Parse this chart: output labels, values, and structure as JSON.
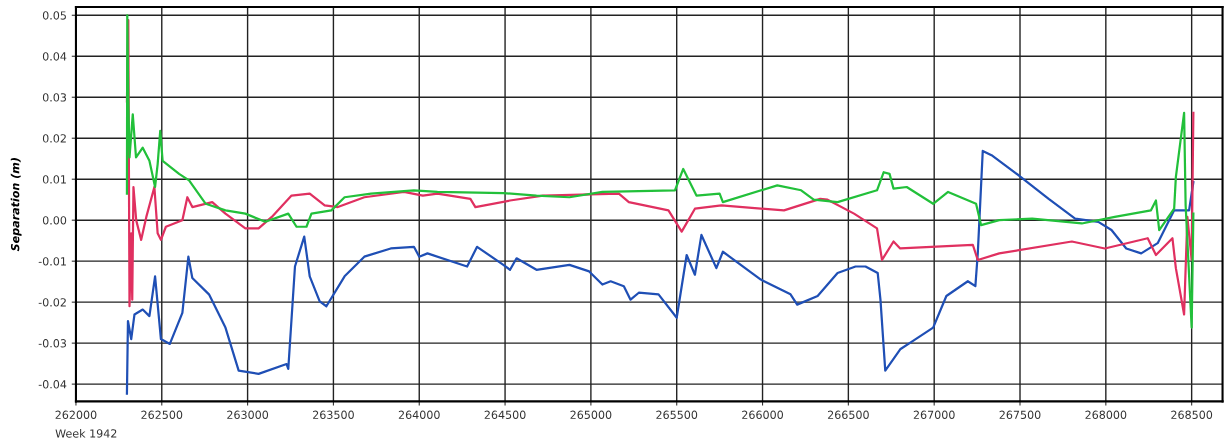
{
  "chart_data": {
    "type": "line",
    "ylabel": "Separation (m)",
    "annotations": [
      "Week 1942"
    ],
    "xlim": [
      262000,
      268680
    ],
    "ylim": [
      -0.0442,
      0.052
    ],
    "xticks": [
      262000,
      262500,
      263000,
      263500,
      264000,
      264500,
      265000,
      265500,
      266000,
      266500,
      267000,
      267500,
      268000,
      268500
    ],
    "yticks": [
      {
        "value": -0.04,
        "label": "-0.04"
      },
      {
        "value": -0.03,
        "label": "-0.03"
      },
      {
        "value": -0.02,
        "label": "-0.02"
      },
      {
        "value": -0.01,
        "label": "-0.01"
      },
      {
        "value": 0,
        "label": "0.00"
      },
      {
        "value": 0.01,
        "label": "0.01"
      },
      {
        "value": 0.02,
        "label": "0.02"
      },
      {
        "value": 0.03,
        "label": "0.03"
      },
      {
        "value": 0.04,
        "label": "0.04"
      },
      {
        "value": 0.05,
        "label": "0.05"
      }
    ],
    "grid": true,
    "legend": false,
    "marker": "none",
    "line_style": "solid",
    "series": [
      {
        "color": "#1f4fb5",
        "x": [
          262297,
          262303,
          262322,
          262341,
          262389,
          262428,
          262461,
          262495,
          262547,
          262620,
          262655,
          262678,
          262775,
          262871,
          262948,
          263064,
          263227,
          263237,
          263276,
          263330,
          263362,
          263420,
          263459,
          263565,
          263680,
          263834,
          263969,
          264000,
          264048,
          264279,
          264337,
          264490,
          264529,
          264567,
          264683,
          264875,
          264990,
          265067,
          265115,
          265192,
          265231,
          265279,
          265394,
          265500,
          265558,
          265606,
          265644,
          265731,
          265769,
          265990,
          266163,
          266202,
          266321,
          266437,
          266542,
          266600,
          266671,
          266687,
          266715,
          266802,
          266879,
          266994,
          267071,
          267196,
          267240,
          267254,
          267283,
          267340,
          267494,
          267667,
          267821,
          267956,
          268033,
          268119,
          268206,
          268302,
          268398,
          268485,
          268510
        ],
        "values": [
          -0.0423,
          -0.0246,
          -0.029,
          -0.023,
          -0.0218,
          -0.0234,
          -0.0137,
          -0.029,
          -0.0302,
          -0.0226,
          -0.0089,
          -0.0141,
          -0.0181,
          -0.0262,
          -0.0367,
          -0.0375,
          -0.0351,
          -0.0363,
          -0.0113,
          -0.004,
          -0.0137,
          -0.0198,
          -0.021,
          -0.0137,
          -0.0089,
          -0.0069,
          -0.0065,
          -0.0089,
          -0.0081,
          -0.0113,
          -0.0065,
          -0.0109,
          -0.0121,
          -0.0093,
          -0.0121,
          -0.0109,
          -0.0125,
          -0.0157,
          -0.0149,
          -0.0161,
          -0.0194,
          -0.0177,
          -0.0181,
          -0.0238,
          -0.0085,
          -0.0133,
          -0.0036,
          -0.0117,
          -0.0077,
          -0.0145,
          -0.0181,
          -0.0206,
          -0.0185,
          -0.0129,
          -0.0113,
          -0.0113,
          -0.0129,
          -0.0194,
          -0.0367,
          -0.0315,
          -0.0294,
          -0.0262,
          -0.0185,
          -0.0149,
          -0.0161,
          -0.0081,
          0.0169,
          0.0157,
          0.0109,
          0.0052,
          0.0004,
          -0.0004,
          -0.0024,
          -0.0069,
          -0.0081,
          -0.0056,
          0.0024,
          0.0024,
          0.0093
        ]
      },
      {
        "color": "#e03060",
        "x": [
          262297,
          262305,
          262312,
          262322,
          262328,
          262335,
          262351,
          262380,
          262410,
          262457,
          262476,
          262495,
          262524,
          262620,
          262649,
          262678,
          262794,
          262871,
          262987,
          263064,
          263141,
          263256,
          263362,
          263449,
          263526,
          263680,
          263911,
          264021,
          264106,
          264298,
          264327,
          264529,
          264721,
          265163,
          265221,
          265452,
          265529,
          265606,
          265760,
          266125,
          266336,
          266379,
          266533,
          266667,
          266696,
          266763,
          266802,
          267225,
          267254,
          267379,
          267802,
          267994,
          268244,
          268292,
          268388,
          268408,
          268456,
          268475,
          268500,
          268510
        ],
        "values": [
          0.029,
          0.0488,
          -0.021,
          -0.0032,
          -0.0194,
          0.0081,
          0.0,
          -0.0048,
          0.0008,
          0.0081,
          -0.0032,
          -0.0048,
          -0.0016,
          0.0,
          0.0056,
          0.0032,
          0.0044,
          0.0016,
          -0.002,
          -0.002,
          0.0008,
          0.006,
          0.0065,
          0.0036,
          0.0032,
          0.0056,
          0.0069,
          0.006,
          0.0065,
          0.0052,
          0.0032,
          0.0048,
          0.006,
          0.0065,
          0.0044,
          0.0024,
          -0.0028,
          0.0028,
          0.0036,
          0.0024,
          0.0052,
          0.005,
          0.0016,
          -0.002,
          -0.0097,
          -0.0052,
          -0.0069,
          -0.006,
          -0.0097,
          -0.0081,
          -0.0052,
          -0.0069,
          -0.0044,
          -0.0085,
          -0.0044,
          -0.0117,
          -0.023,
          0.0008,
          -0.0097,
          0.0262
        ]
      },
      {
        "color": "#22c03a",
        "x": [
          262297,
          262299,
          262305,
          262312,
          262331,
          262350,
          262389,
          262428,
          262461,
          262476,
          262491,
          262505,
          262601,
          262659,
          262756,
          262871,
          262987,
          263103,
          263237,
          263285,
          263343,
          263372,
          263488,
          263565,
          263719,
          263969,
          264106,
          264490,
          264683,
          264875,
          265067,
          265490,
          265538,
          265615,
          265750,
          265769,
          266086,
          266225,
          266298,
          266437,
          266667,
          266706,
          266740,
          266763,
          266840,
          266994,
          267081,
          267244,
          267273,
          267379,
          267571,
          267860,
          268052,
          268263,
          268292,
          268311,
          268398,
          268408,
          268456,
          268465,
          268500,
          268510
        ],
        "values": [
          0.0065,
          0.05,
          0.029,
          0.0153,
          0.0258,
          0.0153,
          0.0177,
          0.0145,
          0.0081,
          0.0137,
          0.0218,
          0.0145,
          0.0113,
          0.0097,
          0.004,
          0.0024,
          0.0016,
          -0.0004,
          0.0016,
          -0.0016,
          -0.0016,
          0.0016,
          0.0024,
          0.0056,
          0.0065,
          0.0073,
          0.0069,
          0.0066,
          0.006,
          0.0056,
          0.0069,
          0.0073,
          0.0125,
          0.006,
          0.0065,
          0.0044,
          0.0085,
          0.0073,
          0.005,
          0.0044,
          0.0073,
          0.0117,
          0.0113,
          0.0077,
          0.0081,
          0.004,
          0.0069,
          0.004,
          -0.0012,
          0.0,
          0.0004,
          -0.0008,
          0.0008,
          0.0024,
          0.0048,
          -0.0024,
          0.0028,
          0.0105,
          0.0262,
          0.0036,
          -0.0262,
          0.0016
        ]
      }
    ]
  }
}
